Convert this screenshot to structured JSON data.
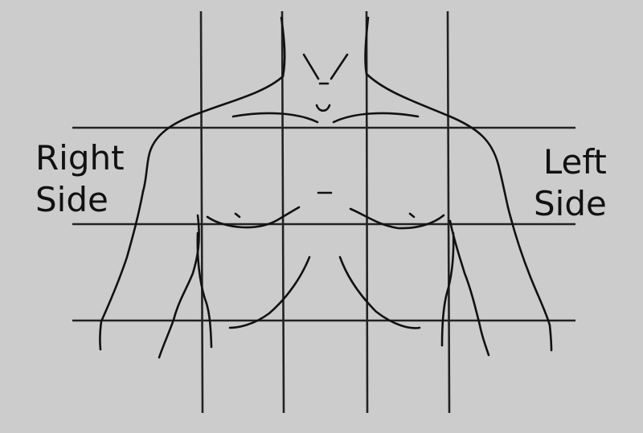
{
  "labels": {
    "right_side": [
      "Right",
      "Side"
    ],
    "left_side": [
      "Left",
      "Side"
    ]
  },
  "colors": {
    "background": "#cccccc",
    "lines": "#111111"
  }
}
